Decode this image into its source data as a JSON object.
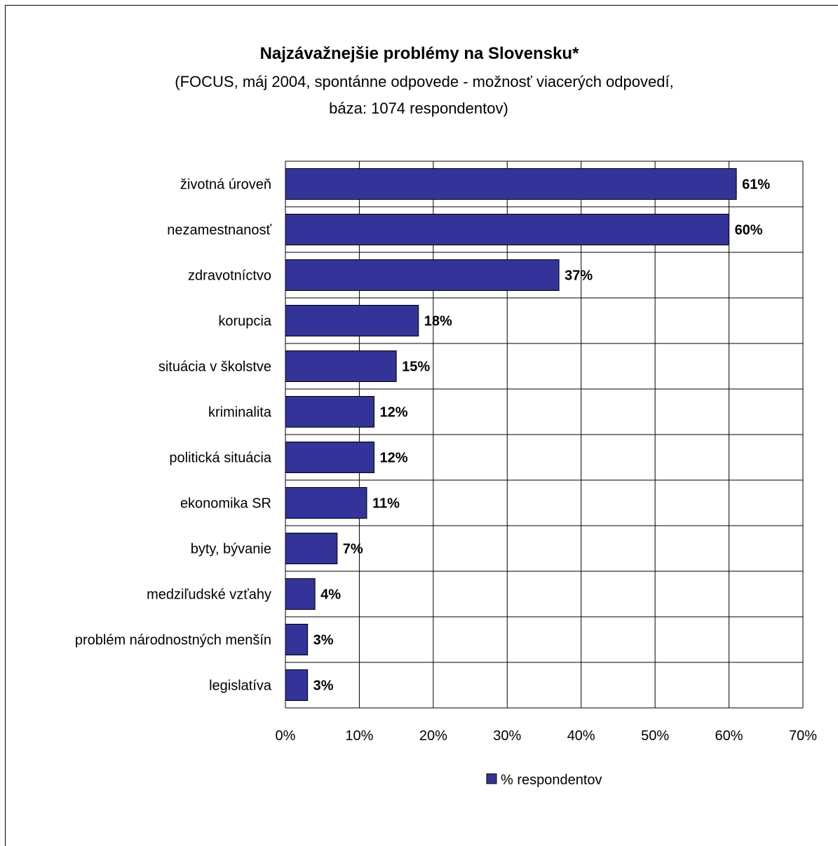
{
  "chart_data": {
    "type": "bar",
    "orientation": "horizontal",
    "title": "Najzávažnejšie problémy na Slovensku*",
    "subtitle_lines": [
      "(FOCUS, máj 2004, spontánne odpovede - možnosť viacerých odpovedí,",
      "báza: 1074 respondentov)"
    ],
    "categories": [
      "životná úroveň",
      "nezamestnanosť",
      "zdravotníctvo",
      "korupcia",
      "situácia v školstve",
      "kriminalita",
      "politická situácia",
      "ekonomika SR",
      "byty, bývanie",
      "medziľudské vzťahy",
      "problém národnostných menšín",
      "legislatíva"
    ],
    "series": [
      {
        "name": "% respondentov",
        "values": [
          61,
          60,
          37,
          18,
          15,
          12,
          12,
          11,
          7,
          4,
          3,
          3
        ],
        "data_labels": [
          "61%",
          "60%",
          "37%",
          "18%",
          "15%",
          "12%",
          "12%",
          "11%",
          "7%",
          "4%",
          "3%",
          "3%"
        ],
        "color": "#333399"
      }
    ],
    "xlim": [
      0,
      70
    ],
    "x_ticks": [
      0,
      10,
      20,
      30,
      40,
      50,
      60,
      70
    ],
    "x_tick_labels": [
      "0%",
      "10%",
      "20%",
      "30%",
      "40%",
      "50%",
      "60%",
      "70%"
    ],
    "grid": true,
    "legend": {
      "position": "bottom-center",
      "entries": [
        "% respondentov"
      ]
    }
  }
}
